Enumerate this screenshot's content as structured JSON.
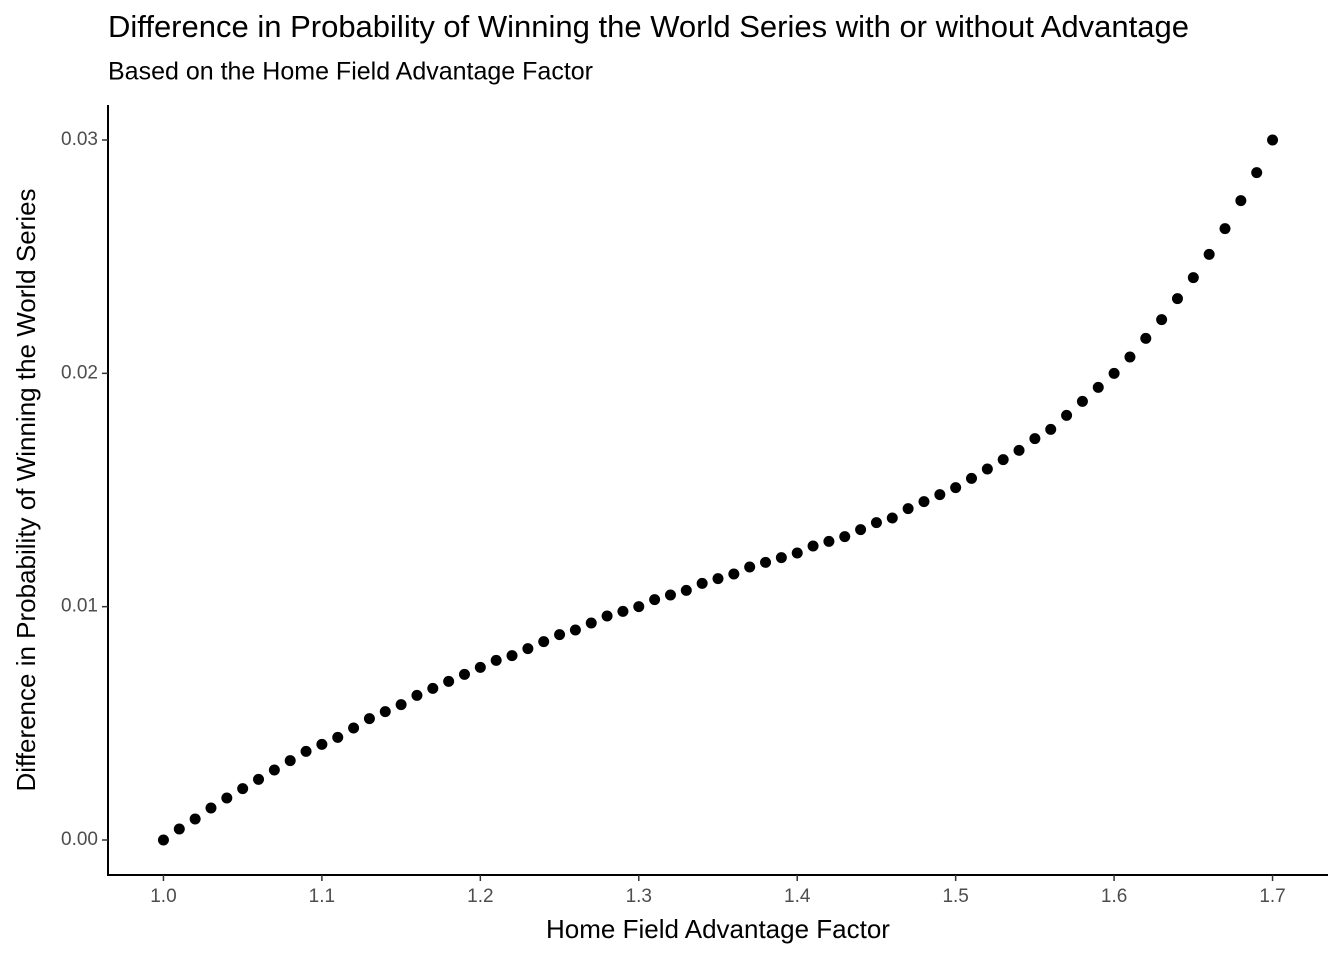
{
  "chart_data": {
    "type": "scatter",
    "title": "Difference in Probability of Winning the World Series with or without Advantage",
    "subtitle": "Based on the Home Field Advantage Factor",
    "x_label": "Home Field Advantage Factor",
    "y_label": "Difference in Probability of Winning the World Series",
    "color": "#000000",
    "x": [
      1.0,
      1.01,
      1.02,
      1.03,
      1.04,
      1.05,
      1.06,
      1.07,
      1.08,
      1.09,
      1.1,
      1.11,
      1.12,
      1.13,
      1.14,
      1.15,
      1.16,
      1.17,
      1.18,
      1.19,
      1.2,
      1.21,
      1.22,
      1.23,
      1.24,
      1.25,
      1.26,
      1.27,
      1.28,
      1.29,
      1.3,
      1.31,
      1.32,
      1.33,
      1.34,
      1.35,
      1.36,
      1.37,
      1.38,
      1.39,
      1.4,
      1.41,
      1.42,
      1.43,
      1.44,
      1.45,
      1.46,
      1.47,
      1.48,
      1.49,
      1.5,
      1.51,
      1.52,
      1.53,
      1.54,
      1.55,
      1.56,
      1.57,
      1.58,
      1.59,
      1.6,
      1.61,
      1.62,
      1.63,
      1.64,
      1.65,
      1.66,
      1.67,
      1.68,
      1.69,
      1.7
    ],
    "values": [
      0,
      0.00047,
      0.0009,
      0.00137,
      0.0018,
      0.0022,
      0.0026,
      0.003,
      0.0034,
      0.0038,
      0.0041,
      0.0044,
      0.0048,
      0.0052,
      0.0055,
      0.0058,
      0.0062,
      0.0065,
      0.0068,
      0.0071,
      0.0074,
      0.0077,
      0.0079,
      0.0082,
      0.0085,
      0.0088,
      0.009,
      0.0093,
      0.0096,
      0.0098,
      0.01,
      0.0103,
      0.0105,
      0.0107,
      0.011,
      0.0112,
      0.0114,
      0.0117,
      0.0119,
      0.0121,
      0.0123,
      0.0126,
      0.0128,
      0.013,
      0.0133,
      0.0136,
      0.0138,
      0.0142,
      0.0145,
      0.0148,
      0.0151,
      0.0155,
      0.0159,
      0.0163,
      0.0167,
      0.0172,
      0.0176,
      0.0182,
      0.0188,
      0.0194,
      0.02,
      0.0207,
      0.0215,
      0.0223,
      0.0232,
      0.0241,
      0.0251,
      0.0262,
      0.0274,
      0.0286,
      0.03
    ],
    "xlim": [
      0.965,
      1.735
    ],
    "ylim": [
      -0.0015,
      0.0315
    ],
    "xticks": [
      {
        "value": 1,
        "label": "1.0"
      },
      1.1,
      1.2,
      1.3,
      1.4,
      1.5,
      1.6,
      1.7
    ],
    "yticks": [
      {
        "value": 0,
        "label": "0.00"
      },
      0.01,
      0.02,
      0.03
    ]
  }
}
